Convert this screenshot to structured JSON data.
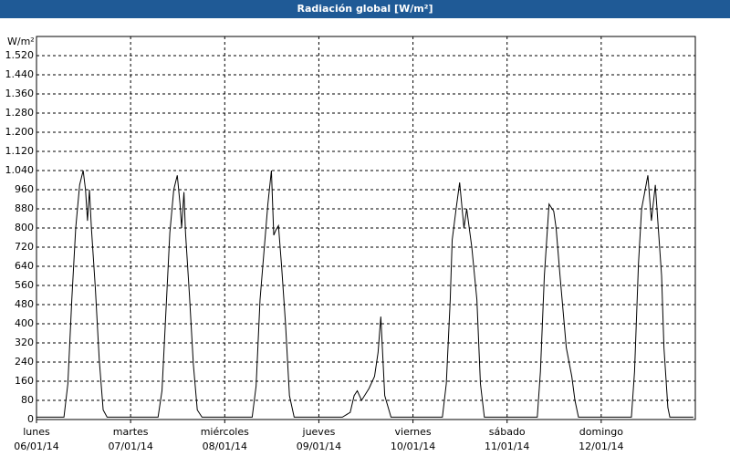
{
  "window_title": "Radiación global [W/m²]",
  "chart_data": {
    "type": "line",
    "y_label": "W/m²",
    "series": [
      {
        "name": "Radiación global",
        "color": "#000000",
        "x": [
          0,
          7,
          8,
          9,
          10,
          11,
          11.9,
          12.5,
          13,
          13.5,
          14,
          15,
          16,
          17,
          18,
          24,
          31,
          32,
          33,
          34,
          35,
          35.9,
          36.6,
          37,
          37.6,
          38,
          39,
          40,
          41,
          42.2,
          48,
          55,
          56,
          57,
          58,
          59,
          59.9,
          60.5,
          61,
          61.7,
          62.5,
          63.5,
          64.5,
          65.7,
          72,
          78,
          80,
          81,
          81.8,
          82.9,
          84.8,
          86.2,
          87.1,
          87.8,
          88.8,
          90.4,
          96,
          103.5,
          104.5,
          105.5,
          106,
          107,
          107.9,
          109,
          109.7,
          111,
          112.3,
          113.2,
          114.2,
          120,
          127.7,
          128.5,
          129.5,
          130.7,
          131.9,
          132.5,
          133.5,
          135.1,
          136.5,
          137.3,
          138.2,
          144,
          151.7,
          152.5,
          153.5,
          154.3,
          155.9,
          156.8,
          157.8,
          159.4,
          160,
          161,
          161.5,
          167.5
        ],
        "values": [
          10,
          10,
          150,
          500,
          800,
          980,
          1040,
          960,
          830,
          960,
          800,
          550,
          250,
          40,
          10,
          10,
          10,
          120,
          450,
          780,
          960,
          1020,
          900,
          800,
          950,
          780,
          520,
          230,
          40,
          10,
          10,
          10,
          140,
          500,
          700,
          900,
          1040,
          770,
          790,
          810,
          640,
          400,
          100,
          10,
          10,
          10,
          30,
          100,
          120,
          80,
          130,
          180,
          280,
          430,
          100,
          10,
          10,
          10,
          150,
          500,
          750,
          880,
          990,
          800,
          880,
          720,
          500,
          150,
          10,
          10,
          10,
          200,
          600,
          900,
          870,
          800,
          600,
          300,
          180,
          80,
          10,
          10,
          10,
          200,
          650,
          880,
          1020,
          830,
          980,
          600,
          300,
          50,
          10,
          10
        ]
      }
    ],
    "xlim": [
      0,
      168
    ],
    "xticks": [
      {
        "value": 0,
        "label": "lunes",
        "date": "06/01/14"
      },
      {
        "value": 24,
        "label": "martes",
        "date": "07/01/14"
      },
      {
        "value": 48,
        "label": "miércoles",
        "date": "08/01/14"
      },
      {
        "value": 72,
        "label": "jueves",
        "date": "09/01/14"
      },
      {
        "value": 96,
        "label": "viernes",
        "date": "10/01/14"
      },
      {
        "value": 120,
        "label": "sábado",
        "date": "11/01/14"
      },
      {
        "value": 144,
        "label": "domingo",
        "date": "12/01/14"
      }
    ],
    "ylim": [
      0,
      1600
    ],
    "yticks": [
      0,
      80,
      160,
      240,
      320,
      400,
      480,
      560,
      640,
      720,
      800,
      880,
      960,
      {
        "value": 1040,
        "label": "1.040"
      },
      {
        "value": 1120,
        "label": "1.120"
      },
      {
        "value": 1200,
        "label": "1.200"
      },
      {
        "value": 1280,
        "label": "1.280"
      },
      {
        "value": 1360,
        "label": "1.360"
      },
      {
        "value": 1440,
        "label": "1.440"
      },
      {
        "value": 1520,
        "label": "1.520"
      }
    ],
    "grid": true
  }
}
